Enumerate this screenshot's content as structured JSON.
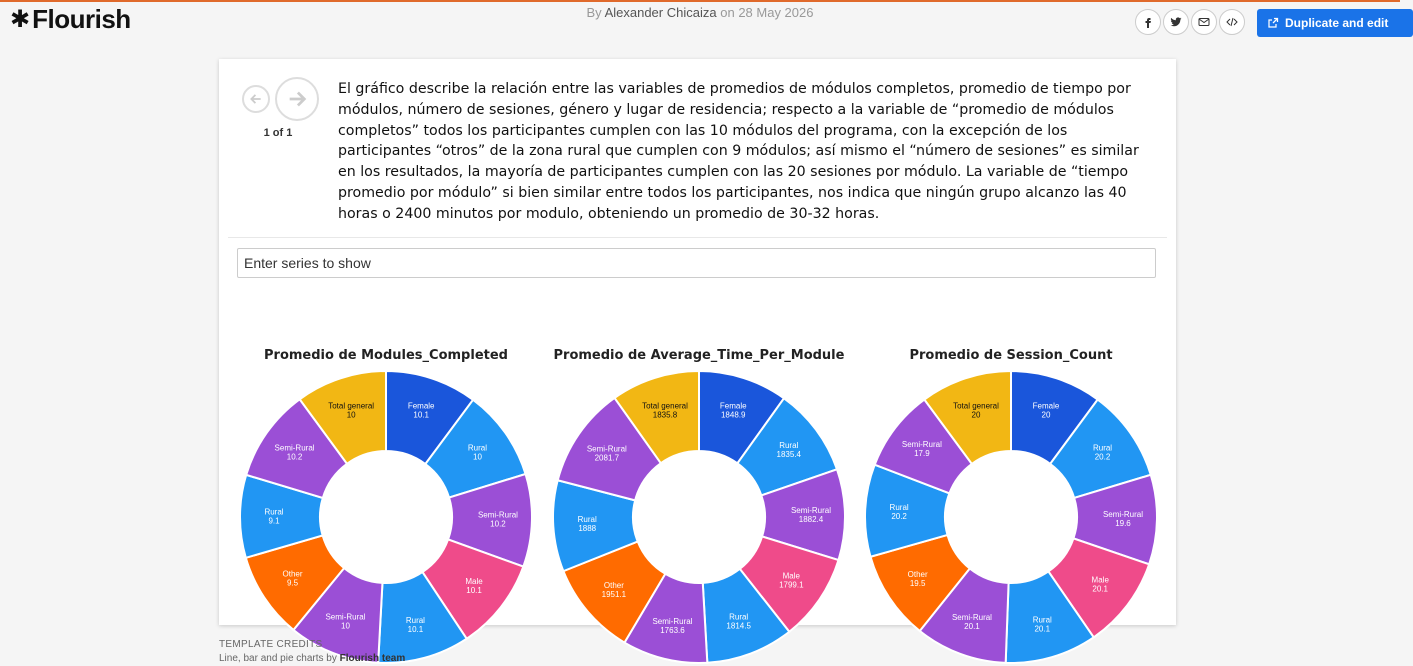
{
  "header": {
    "logo_text": "Flourish",
    "byline_prefix": "By",
    "author": "Alexander Chicaiza",
    "byline_on": "on",
    "date": "28 May 2026",
    "share_icons": [
      "facebook-icon",
      "twitter-icon",
      "email-icon",
      "embed-icon"
    ],
    "duplicate_label": "Duplicate and edit",
    "accent_color": "#1a73e8",
    "topline_color": "#e06a2c"
  },
  "story": {
    "counter": "1 of 1",
    "description": "El gráfico describe la relación entre las variables de promedios de módulos completos, promedio de tiempo por módulos, número de sesiones, género y lugar de residencia; respecto a la variable de “promedio de módulos completos” todos los participantes cumplen con las 10 módulos del programa, con la excepción de los participantes “otros” de la zona rural que cumplen con 9 módulos; así mismo el “número de sesiones” es similar en los resultados, la mayoría de participantes cumplen con las 20 sesiones por módulo. La variable de “tiempo promedio por módulo” si bien similar entre todos los participantes, nos indica que ningún grupo alcanzo las 40 horas o 2400 minutos por modulo, obteniendo un promedio de 30-32 horas."
  },
  "filter": {
    "placeholder": "Enter series to show"
  },
  "chart_data": [
    {
      "type": "pie",
      "title": "Promedio de Modules_Completed",
      "categories": [
        "Female",
        "Rural",
        "Semi-Rural",
        "Male",
        "Rural",
        "Semi-Rural",
        "Other",
        "Rural",
        "Semi-Rural",
        "Total general"
      ],
      "values": [
        10.1,
        10,
        10.2,
        10.1,
        10.1,
        10,
        9.5,
        9.1,
        10.2,
        10
      ],
      "value_labels": [
        "10.1",
        "10",
        "10.2",
        "10.1",
        "10.1",
        "10",
        "9.5",
        "9.1",
        "10.2",
        "10"
      ],
      "colors": [
        "#1a56db",
        "#2196f3",
        "#9b4fd6",
        "#ef4b8a",
        "#2196f3",
        "#9b4fd6",
        "#ff6b00",
        "#2196f3",
        "#9b4fd6",
        "#f2b714"
      ]
    },
    {
      "type": "pie",
      "title": "Promedio de Average_Time_Per_Module",
      "categories": [
        "Female",
        "Rural",
        "Semi-Rural",
        "Male",
        "Rural",
        "Semi-Rural",
        "Other",
        "Rural",
        "Semi-Rural",
        "Total general"
      ],
      "values": [
        1848.9,
        1835.4,
        1882.4,
        1799.1,
        1814.5,
        1763.6,
        1951.1,
        1888,
        2081.7,
        1835.8
      ],
      "value_labels": [
        "1848.9",
        "1835.4",
        "1882.4",
        "1799.1",
        "1814.5",
        "1763.6",
        "1951.1",
        "1888",
        "2081.7",
        "1835.8"
      ],
      "colors": [
        "#1a56db",
        "#2196f3",
        "#9b4fd6",
        "#ef4b8a",
        "#2196f3",
        "#9b4fd6",
        "#ff6b00",
        "#2196f3",
        "#9b4fd6",
        "#f2b714"
      ]
    },
    {
      "type": "pie",
      "title": "Promedio de Session_Count",
      "categories": [
        "Female",
        "Rural",
        "Semi-Rural",
        "Male",
        "Rural",
        "Semi-Rural",
        "Other",
        "Rural",
        "Semi-Rural",
        "Total general"
      ],
      "values": [
        20,
        20.2,
        19.6,
        20.1,
        20.1,
        20.1,
        19.5,
        20.2,
        17.9,
        20
      ],
      "value_labels": [
        "20",
        "20.2",
        "19.6",
        "20.1",
        "20.1",
        "20.1",
        "19.5",
        "20.2",
        "17.9",
        "20"
      ],
      "colors": [
        "#1a56db",
        "#2196f3",
        "#9b4fd6",
        "#ef4b8a",
        "#2196f3",
        "#9b4fd6",
        "#ff6b00",
        "#2196f3",
        "#9b4fd6",
        "#f2b714"
      ]
    }
  ],
  "credits": {
    "title": "TEMPLATE CREDITS",
    "text": "Line, bar and pie charts by",
    "author": "Flourish team"
  }
}
